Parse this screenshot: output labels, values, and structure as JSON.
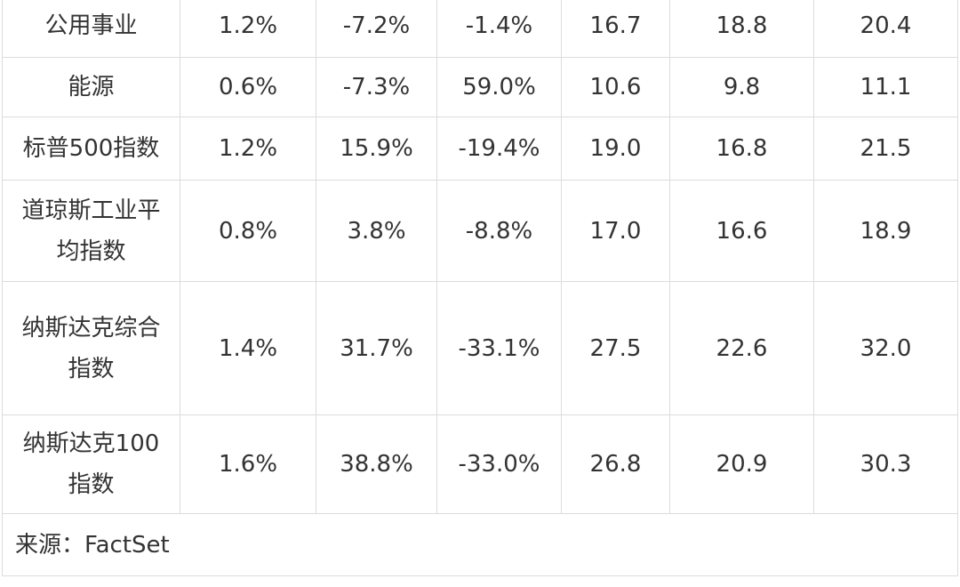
{
  "rows": [
    {
      "name_lines": [
        "公用事业"
      ],
      "c1": "1.2%",
      "c2": "-7.2%",
      "c3": "-1.4%",
      "c4": "16.7",
      "c5": "18.8",
      "c6": "20.4"
    },
    {
      "name_lines": [
        "能源"
      ],
      "c1": "0.6%",
      "c2": "-7.3%",
      "c3": "59.0%",
      "c4": "10.6",
      "c5": "9.8",
      "c6": "11.1"
    },
    {
      "name_lines": [
        "标普500指数"
      ],
      "c1": "1.2%",
      "c2": "15.9%",
      "c3": "-19.4%",
      "c4": "19.0",
      "c5": "16.8",
      "c6": "21.5"
    },
    {
      "name_lines": [
        "道琼斯工业平",
        "均指数"
      ],
      "c1": "0.8%",
      "c2": "3.8%",
      "c3": "-8.8%",
      "c4": "17.0",
      "c5": "16.6",
      "c6": "18.9"
    },
    {
      "name_lines": [
        "纳斯达克综合",
        "指数"
      ],
      "c1": "1.4%",
      "c2": "31.7%",
      "c3": "-33.1%",
      "c4": "27.5",
      "c5": "22.6",
      "c6": "32.0"
    },
    {
      "name_lines": [
        "纳斯达克100",
        "指数"
      ],
      "c1": "1.6%",
      "c2": "38.8%",
      "c3": "-33.0%",
      "c4": "26.8",
      "c5": "20.9",
      "c6": "30.3"
    }
  ],
  "source": "来源：FactSet"
}
